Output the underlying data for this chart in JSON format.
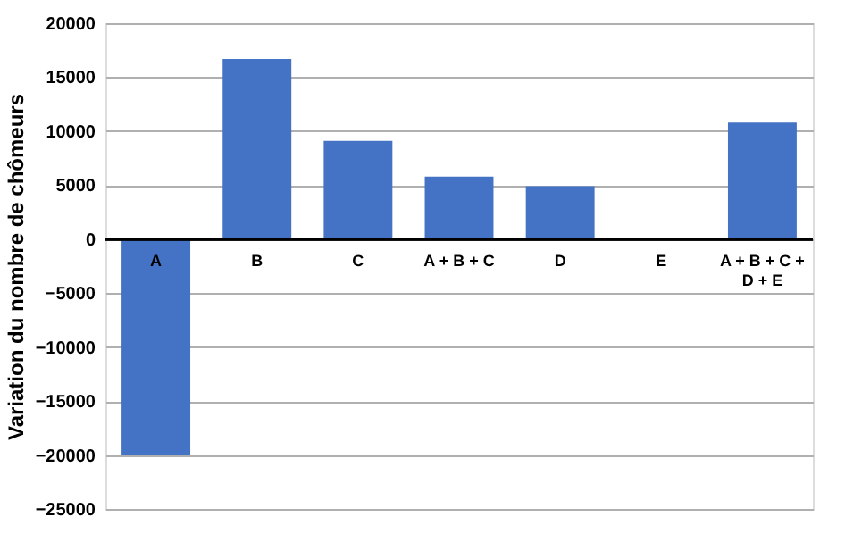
{
  "chart_data": {
    "type": "bar",
    "ylabel": "Variation du nombre de chômeurs",
    "categories": [
      "A",
      "B",
      "C",
      "A + B + C",
      "D",
      "E",
      "A + B + C + D + E"
    ],
    "values": [
      -20000,
      16700,
      9100,
      5800,
      4900,
      0,
      10800
    ],
    "color": "#4472c4",
    "ylim": [
      -25000,
      20000
    ],
    "yticks": [
      -25000,
      -20000,
      -15000,
      -10000,
      -5000,
      0,
      5000,
      10000,
      15000,
      20000
    ],
    "grid": "y"
  }
}
